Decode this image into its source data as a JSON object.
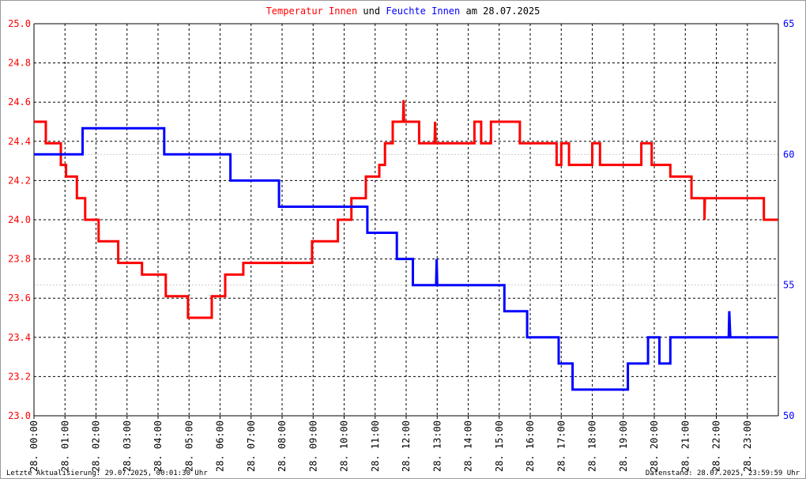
{
  "chart_data": {
    "type": "line",
    "title_joiner": "und",
    "title_date": "am 28.07.2025",
    "footer_left": "Letzte Aktualisierung: 29.07.2025, 00:01:30 Uhr",
    "footer_right": "Datenstand: 28.07.2025, 23:59:59 Uhr",
    "xlim": [
      "28. 00:00",
      "28. 23:59"
    ],
    "xticks": [
      "28. 00:00",
      "28. 01:00",
      "28. 02:00",
      "28. 03:00",
      "28. 04:00",
      "28. 05:00",
      "28. 06:00",
      "28. 07:00",
      "28. 08:00",
      "28. 09:00",
      "28. 10:00",
      "28. 11:00",
      "28. 12:00",
      "28. 13:00",
      "28. 14:00",
      "28. 15:00",
      "28. 16:00",
      "28. 17:00",
      "28. 18:00",
      "28. 19:00",
      "28. 20:00",
      "28. 21:00",
      "28. 22:00",
      "28. 23:00"
    ],
    "ylim": [
      23,
      25
    ],
    "yticks": [
      {
        "value": 23,
        "label": "23.0"
      },
      23.2,
      23.4,
      23.6,
      23.8,
      {
        "value": 24,
        "label": "24.0"
      },
      24.2,
      24.4,
      24.6,
      24.8,
      {
        "value": 25,
        "label": "25.0"
      }
    ],
    "y2lim": [
      50,
      65
    ],
    "y2ticks": [
      50,
      55,
      60,
      65
    ],
    "grid": true,
    "series": [
      {
        "name": "Temperatur Innen",
        "color": "#ff0000",
        "x": [
          "28. 00:00",
          "28. 00:23",
          "28. 00:23",
          "28. 00:52",
          "28. 00:52",
          "28. 01:02",
          "28. 01:02",
          "28. 01:23",
          "28. 01:23",
          "28. 01:39",
          "28. 01:39",
          "28. 02:05",
          "28. 02:05",
          "28. 02:43",
          "28. 02:43",
          "28. 03:29",
          "28. 03:29",
          "28. 04:15",
          "28. 04:15",
          "28. 04:58",
          "28. 04:58",
          "28. 05:44",
          "28. 05:44",
          "28. 06:10",
          "28. 06:10",
          "28. 06:45",
          "28. 06:45",
          "28. 08:58",
          "28. 08:58",
          "28. 09:48",
          "28. 09:48",
          "28. 10:14",
          "28. 10:14",
          "28. 10:42",
          "28. 10:42",
          "28. 11:08",
          "28. 11:08",
          "28. 11:19",
          "28. 11:19",
          "28. 11:34",
          "28. 11:34",
          "28. 11:54",
          "28. 11:55",
          "28. 11:56",
          "28. 12:25",
          "28. 12:25",
          "28. 12:55",
          "28. 12:56",
          "28. 12:57",
          "28. 14:12",
          "28. 14:12",
          "28. 14:25",
          "28. 14:25",
          "28. 14:44",
          "28. 14:44",
          "28. 15:40",
          "28. 15:40",
          "28. 16:51",
          "28. 16:51",
          "28. 17:00",
          "28. 17:00",
          "28. 17:15",
          "28. 17:15",
          "28. 18:00",
          "28. 18:00",
          "28. 18:15",
          "28. 18:15",
          "28. 19:35",
          "28. 19:35",
          "28. 19:55",
          "28. 19:55",
          "28. 20:31",
          "28. 20:31",
          "28. 21:12",
          "28. 21:12",
          "28. 21:37",
          "28. 21:37",
          "28. 21:38",
          "28. 23:32",
          "28. 23:32",
          "28. 23:59"
        ],
        "values": [
          24.5,
          24.5,
          24.39,
          24.39,
          24.28,
          24.28,
          24.22,
          24.22,
          24.11,
          24.11,
          24.0,
          24.0,
          23.89,
          23.89,
          23.78,
          23.78,
          23.72,
          23.72,
          23.61,
          23.61,
          23.5,
          23.5,
          23.61,
          23.61,
          23.72,
          23.72,
          23.78,
          23.78,
          23.89,
          23.89,
          24.0,
          24.0,
          24.11,
          24.11,
          24.22,
          24.22,
          24.28,
          24.28,
          24.39,
          24.39,
          24.5,
          24.5,
          24.61,
          24.5,
          24.5,
          24.39,
          24.39,
          24.5,
          24.39,
          24.39,
          24.5,
          24.5,
          24.39,
          24.39,
          24.5,
          24.5,
          24.39,
          24.39,
          24.28,
          24.28,
          24.39,
          24.39,
          24.28,
          24.28,
          24.39,
          24.39,
          24.28,
          24.28,
          24.39,
          24.39,
          24.28,
          24.28,
          24.22,
          24.22,
          24.11,
          24.11,
          24.0,
          24.11,
          24.11,
          24.0,
          24.0
        ]
      },
      {
        "name": "Feuchte Innen",
        "color": "#0000ff",
        "axis": "y2",
        "x": [
          "28. 00:00",
          "28. 01:34",
          "28. 01:34",
          "28. 04:12",
          "28. 04:12",
          "28. 06:20",
          "28. 06:20",
          "28. 07:54",
          "28. 07:54",
          "28. 10:45",
          "28. 10:45",
          "28. 11:42",
          "28. 11:42",
          "28. 12:13",
          "28. 12:13",
          "28. 12:58",
          "28. 12:59",
          "28. 13:00",
          "28. 15:10",
          "28. 15:10",
          "28. 15:54",
          "28. 15:54",
          "28. 16:55",
          "28. 16:55",
          "28. 17:22",
          "28. 17:22",
          "28. 19:09",
          "28. 19:09",
          "28. 19:48",
          "28. 19:48",
          "28. 20:10",
          "28. 20:10",
          "28. 20:31",
          "28. 20:31",
          "28. 22:24",
          "28. 22:25",
          "28. 22:27",
          "28. 23:59"
        ],
        "values": [
          60,
          60,
          61,
          61,
          60,
          60,
          59,
          59,
          58,
          58,
          57,
          57,
          56,
          56,
          55,
          55,
          56,
          55,
          55,
          54,
          54,
          53,
          53,
          52,
          52,
          51,
          51,
          52,
          52,
          53,
          53,
          52,
          52,
          53,
          53,
          54,
          53,
          53
        ]
      }
    ]
  }
}
